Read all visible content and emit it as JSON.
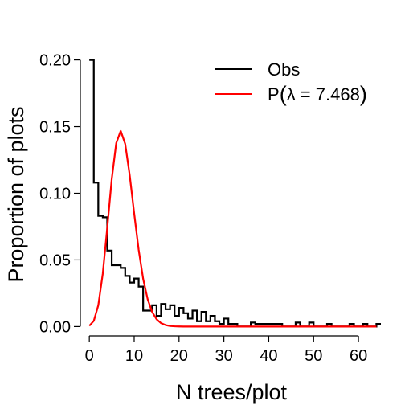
{
  "chart_data": {
    "type": "line",
    "xlabel": "N trees/plot",
    "ylabel": "Proportion of plots",
    "xlim": [
      -2,
      65
    ],
    "ylim": [
      -0.007,
      0.21
    ],
    "x_ticks": [
      0,
      10,
      20,
      30,
      40,
      50,
      60
    ],
    "y_ticks": [
      0.0,
      0.05,
      0.1,
      0.15,
      0.2
    ],
    "y_tick_labels": [
      "0.00",
      "0.05",
      "0.10",
      "0.15",
      "0.20"
    ],
    "grid": false,
    "legend_position": "top-right",
    "series": [
      {
        "name": "Obs",
        "style": "step",
        "color": "#000000",
        "x": [
          0,
          1,
          2,
          3,
          4,
          5,
          6,
          7,
          8,
          9,
          10,
          11,
          12,
          13,
          14,
          15,
          16,
          17,
          18,
          19,
          20,
          21,
          22,
          23,
          24,
          25,
          26,
          27,
          28,
          29,
          30,
          31,
          32,
          33,
          34,
          35,
          36,
          37,
          38,
          39,
          40,
          41,
          42,
          43,
          44,
          45,
          46,
          47,
          48,
          49,
          50,
          51,
          52,
          53,
          54,
          55,
          56,
          57,
          58,
          59,
          60,
          61,
          62,
          63,
          64
        ],
        "y": [
          0.2,
          0.108,
          0.083,
          0.082,
          0.057,
          0.046,
          0.046,
          0.044,
          0.038,
          0.033,
          0.036,
          0.03,
          0.012,
          0.012,
          0.016,
          0.008,
          0.017,
          0.013,
          0.016,
          0.008,
          0.014,
          0.01,
          0.006,
          0.012,
          0.004,
          0.011,
          0.004,
          0.008,
          0.004,
          0.002,
          0.006,
          0.002,
          0.002,
          0.0,
          0.0,
          0.0,
          0.003,
          0.002,
          0.002,
          0.002,
          0.002,
          0.002,
          0.002,
          0.0,
          0.0,
          0.0,
          0.003,
          0.0,
          0.0,
          0.003,
          0.0,
          0.0,
          0.0,
          0.002,
          0.0,
          0.0,
          0.0,
          0.0,
          0.002,
          0.0,
          0.0,
          0.002,
          0.0,
          0.0,
          0.002
        ]
      },
      {
        "name": "P(λ = 7.468)",
        "style": "line",
        "color": "#ff0000",
        "lambda": 7.468
      }
    ]
  },
  "legend": {
    "obs_label": "Obs",
    "pois_prefix": "P",
    "pois_inner": "λ = 7.468"
  }
}
